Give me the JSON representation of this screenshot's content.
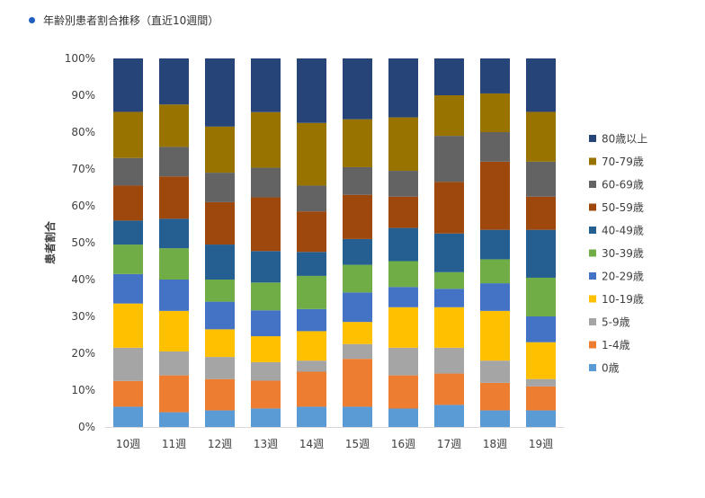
{
  "header": {
    "title": "年齢別患者割合推移（直近10週間）",
    "bullet_color": "#1f5fbf"
  },
  "chart_data": {
    "type": "bar",
    "stacked": true,
    "percent": true,
    "title": "年齢別患者割合推移（直近10週間）",
    "xlabel": "",
    "ylabel": "患者割合",
    "ylim": [
      0,
      100
    ],
    "yticks": [
      "0%",
      "10%",
      "20%",
      "30%",
      "40%",
      "50%",
      "60%",
      "70%",
      "80%",
      "90%",
      "100%"
    ],
    "grid": false,
    "legend": "right",
    "categories": [
      "10週",
      "11週",
      "12週",
      "13週",
      "14週",
      "15週",
      "16週",
      "17週",
      "18週",
      "19週"
    ],
    "series": [
      {
        "name": "0歳",
        "color": "#5b9bd5",
        "values": [
          5.5,
          4.0,
          4.5,
          5.0,
          5.5,
          5.5,
          5.0,
          6.0,
          4.5,
          4.5
        ]
      },
      {
        "name": "1-4歳",
        "color": "#ed7d31",
        "values": [
          7.0,
          10.0,
          8.5,
          7.5,
          9.5,
          13.0,
          9.0,
          8.5,
          7.5,
          6.5
        ]
      },
      {
        "name": "5-9歳",
        "color": "#a5a5a5",
        "values": [
          9.0,
          6.5,
          6.0,
          5.0,
          3.0,
          4.0,
          7.5,
          7.0,
          6.0,
          2.0
        ]
      },
      {
        "name": "10-19歳",
        "color": "#ffc000",
        "values": [
          12.0,
          11.0,
          7.5,
          7.0,
          8.0,
          6.0,
          11.0,
          11.0,
          13.5,
          10.0
        ]
      },
      {
        "name": "20-29歳",
        "color": "#4472c4",
        "values": [
          8.0,
          8.5,
          7.5,
          7.0,
          6.0,
          8.0,
          5.5,
          5.0,
          7.5,
          7.0
        ]
      },
      {
        "name": "30-39歳",
        "color": "#70ad47",
        "values": [
          8.0,
          8.5,
          6.0,
          7.5,
          9.0,
          7.5,
          7.0,
          4.5,
          6.5,
          10.5
        ]
      },
      {
        "name": "40-49歳",
        "color": "#255e91",
        "values": [
          6.5,
          8.0,
          9.5,
          8.5,
          6.5,
          7.0,
          9.0,
          10.5,
          8.0,
          13.0
        ]
      },
      {
        "name": "50-59歳",
        "color": "#9e480e",
        "values": [
          9.5,
          11.5,
          11.5,
          14.5,
          11.0,
          12.0,
          8.5,
          14.0,
          18.5,
          9.0
        ]
      },
      {
        "name": "60-69歳",
        "color": "#636363",
        "values": [
          7.5,
          8.0,
          8.0,
          8.0,
          7.0,
          7.5,
          7.0,
          12.5,
          8.0,
          9.5
        ]
      },
      {
        "name": "70-79歳",
        "color": "#997300",
        "values": [
          12.5,
          11.5,
          12.5,
          15.0,
          17.0,
          13.0,
          14.5,
          11.0,
          10.5,
          13.5
        ]
      },
      {
        "name": "80歳以上",
        "color": "#264478",
        "values": [
          14.5,
          12.5,
          18.5,
          14.5,
          17.5,
          16.5,
          16.0,
          10.0,
          9.5,
          14.5
        ]
      }
    ]
  }
}
